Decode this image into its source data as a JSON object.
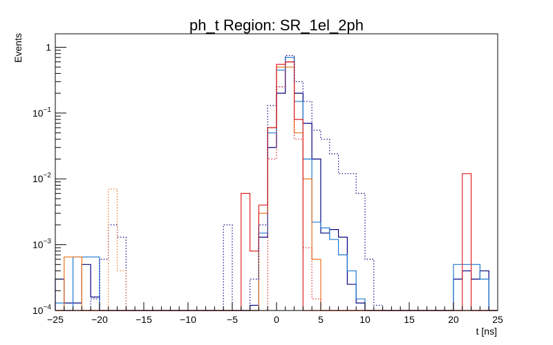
{
  "chart_data": {
    "type": "histogram",
    "title": "ph_t Region: SR_1el_2ph",
    "xlabel": "t [ns]",
    "ylabel": "Events",
    "y_scale": "log",
    "xlim": [
      -25,
      25
    ],
    "ylim": [
      0.0001,
      1.6
    ],
    "bin_width": 1,
    "x_ticks": [
      "−25",
      "−20",
      "−15",
      "−10",
      "−5",
      "0",
      "5",
      "10",
      "15",
      "20",
      "25"
    ],
    "y_ticks": [
      {
        "base": "10",
        "exp": "−4"
      },
      {
        "base": "10",
        "exp": "−3"
      },
      {
        "base": "10",
        "exp": "−2"
      },
      {
        "base": "10",
        "exp": "−1"
      },
      {
        "base": "1",
        "exp": ""
      }
    ],
    "legend": "none",
    "bin_edges_start": -25,
    "series": [
      {
        "color": "#000080",
        "style": "solid",
        "values": {
          "-25": 0.0003,
          "-24": 0.00013,
          "-23": 0.00013,
          "-22": 0.0005,
          "-21": 0.00016,
          "-3": 0.00012,
          "-2": 0.0013,
          "-1": 0.03,
          "0": 0.2,
          "1": 0.6,
          "2": 0.2,
          "3": 0.07,
          "4": 0.02,
          "5": 0.0015,
          "6": 0.0017,
          "7": 0.0013,
          "8": 0.00025,
          "9": 0.00013,
          "20": 0.0003,
          "21": 0.0004,
          "22": 0.0003,
          "23": 0.0004
        }
      },
      {
        "color": "#1f77d0",
        "style": "solid",
        "values": {
          "-25": 0.00013,
          "-23": 0.00065,
          "-22": 0.00065,
          "-21": 0.00065,
          "-2": 0.0015,
          "-1": 0.05,
          "0": 0.45,
          "1": 0.7,
          "2": 0.15,
          "3": 0.02,
          "4": 0.0022,
          "5": 0.0018,
          "6": 0.0012,
          "7": 0.0007,
          "8": 0.0004,
          "9": 0.00015,
          "20": 0.0005,
          "21": 0.0005,
          "22": 0.0005,
          "23": 0.0003
        }
      },
      {
        "color": "#e8701a",
        "style": "solid",
        "values": {
          "-24": 0.00065,
          "-23": 0.00065,
          "-2": 0.003,
          "-1": 0.06,
          "0": 0.5,
          "1": 0.5,
          "2": 0.05,
          "3": 0.01,
          "4": 0.0006
        }
      },
      {
        "color": "#e02020",
        "style": "solid",
        "values": {
          "-4": 0.006,
          "-3": 0.0008,
          "-2": 0.004,
          "-1": 0.06,
          "0": 0.55,
          "1": 0.6,
          "2": 0.08,
          "21": 0.012
        }
      },
      {
        "color": "#000080",
        "style": "dotted",
        "values": {
          "-21": 0.00015,
          "-20": 0.0006,
          "-19": 0.002,
          "-18": 0.0013,
          "-6": 0.002,
          "-3": 0.0003,
          "-2": 0.002,
          "-1": 0.13,
          "0": 0.25,
          "1": 0.75,
          "2": 0.3,
          "3": 0.15,
          "4": 0.055,
          "5": 0.04,
          "6": 0.024,
          "7": 0.012,
          "8": 0.012,
          "9": 0.006,
          "10": 0.0006,
          "11": 0.00012
        }
      },
      {
        "color": "#e8701a",
        "style": "dotted",
        "values": {
          "-19": 0.007,
          "-18": 0.0004
        }
      },
      {
        "color": "#e02020",
        "style": "dotted",
        "values": {
          "-1": 0.02,
          "0": 0.25,
          "1": 0.6,
          "2": 0.04,
          "3": 0.0009,
          "4": 0.00015
        }
      }
    ]
  }
}
